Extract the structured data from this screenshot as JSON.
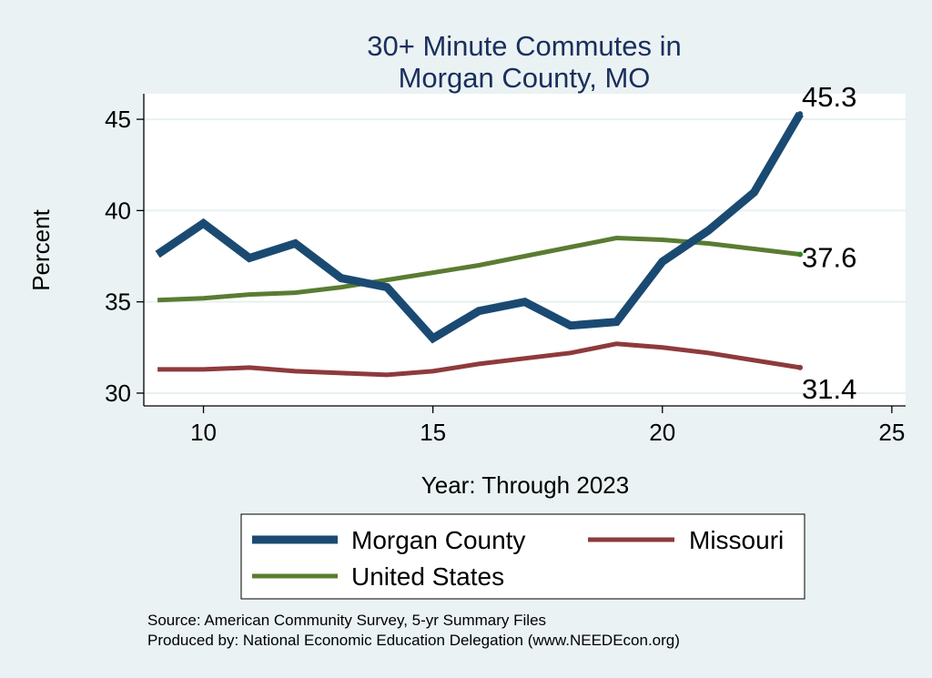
{
  "chart_data": {
    "type": "line",
    "title_lines": [
      "30+ Minute Commutes in",
      "Morgan County, MO"
    ],
    "xlabel": "Year: Through 2023",
    "ylabel": "Percent",
    "xlim": [
      8.7,
      25.3
    ],
    "ylim": [
      29.3,
      46.4
    ],
    "x_ticks": [
      10,
      15,
      20,
      25
    ],
    "y_ticks": [
      30,
      35,
      40,
      45
    ],
    "grid": "horizontal",
    "legend_position": "bottom",
    "series": [
      {
        "name": "Morgan County",
        "color": "#1a4a72",
        "x": [
          9,
          10,
          11,
          12,
          13,
          14,
          15,
          16,
          17,
          18,
          19,
          20,
          21,
          22,
          23
        ],
        "values": [
          37.6,
          39.3,
          37.4,
          38.2,
          36.3,
          35.8,
          33.0,
          34.5,
          35.0,
          33.7,
          33.9,
          37.2,
          38.9,
          41.0,
          45.3
        ],
        "end_label": "45.3"
      },
      {
        "name": "Missouri",
        "color": "#8e3a3d",
        "x": [
          9,
          10,
          11,
          12,
          13,
          14,
          15,
          16,
          17,
          18,
          19,
          20,
          21,
          22,
          23
        ],
        "values": [
          31.3,
          31.3,
          31.4,
          31.2,
          31.1,
          31.0,
          31.2,
          31.6,
          31.9,
          32.2,
          32.7,
          32.5,
          32.2,
          31.8,
          31.4
        ],
        "end_label": "31.4"
      },
      {
        "name": "United States",
        "color": "#5a7c32",
        "x": [
          9,
          10,
          11,
          12,
          13,
          14,
          15,
          16,
          17,
          18,
          19,
          20,
          21,
          22,
          23
        ],
        "values": [
          35.1,
          35.2,
          35.4,
          35.5,
          35.8,
          36.2,
          36.6,
          37.0,
          37.5,
          38.0,
          38.5,
          38.4,
          38.2,
          37.9,
          37.6
        ],
        "end_label": "37.6"
      }
    ],
    "notes": [
      "Source: American Community Survey, 5-yr Summary Files",
      "Produced by: National Economic Education Delegation (www.NEEDEcon.org)"
    ]
  }
}
